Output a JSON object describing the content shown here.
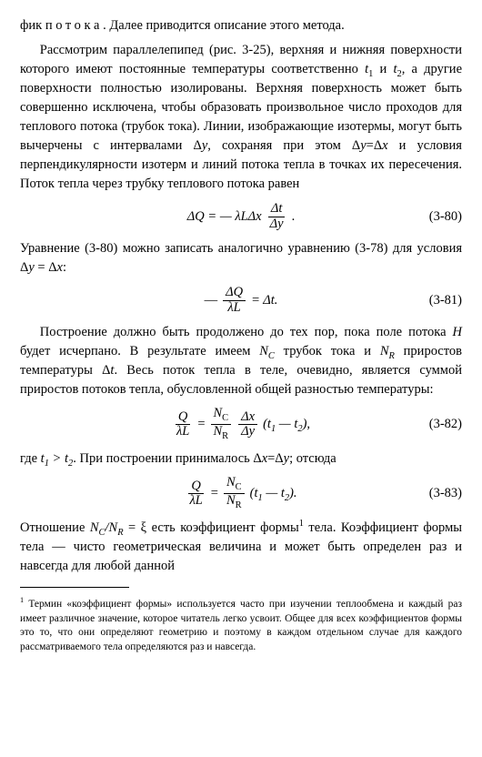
{
  "paragraphs": {
    "p1_a": "фик ",
    "p1_b": "потока",
    "p1_c": ". Далее приводится описание этого метода.",
    "p2_a": "Рассмотрим параллелепипед (рис. 3-25), верхняя и нижняя поверхности которого имеют постоянные температуры соответственно ",
    "p2_b": " и ",
    "p2_c": ", а другие поверхности полностью изолированы. Верхняя поверхность может быть совершенно исключена, чтобы образовать произвольное число проходов для теплового потока (трубок тока). Линии, изображающие изотермы, могут быть вычерчены с интервалами Δ",
    "p2_d": ", сохраняя при этом Δ",
    "p2_e": "=Δ",
    "p2_f": " и условия перпендикулярности изотерм и линий потока тепла в точках их пересечения. Поток тепла через трубку теплового потока равен",
    "p3_a": "Уравнение (3-80) можно записать аналогично уравнению (3-78) для условия Δ",
    "p3_b": " = Δ",
    "p3_c": ":",
    "p4_a": "Построение должно быть продолжено до тех пор, пока поле потока ",
    "p4_b": " будет исчерпано. В результате имеем ",
    "p4_c": " трубок тока и ",
    "p4_d": " приростов температуры Δ",
    "p4_e": ". Весь поток тепла в теле, очевидно, является суммой приростов потоков тепла, обусловленной общей разностью температуры:",
    "p5_a": "где ",
    "p5_b": ". При построении принималось Δ",
    "p5_c": "=Δ",
    "p5_d": "; отсюда",
    "p6_a": "Отношение ",
    "p6_b": " = ξ есть коэффициент формы",
    "p6_c": " тела. Коэффициент формы тела — чисто геометрическая величина и может быть определен раз и навсегда для любой данной"
  },
  "symbols": {
    "t1": "t",
    "t1sub": "1",
    "t2": "t",
    "t2sub": "2",
    "y": "y",
    "x": "x",
    "H": "H",
    "t": "t",
    "NC": "N",
    "NCsub": "C",
    "NR": "N",
    "NRsub": "R",
    "ratio_a": "N",
    "ratio_a_sub": "C",
    "ratio_b": "N",
    "ratio_b_sub": "R",
    "gt": " > "
  },
  "equations": {
    "e80": {
      "lhs": "ΔQ = — λLΔx",
      "frac_num": "Δt",
      "frac_den": "Δy",
      "tail": " .",
      "num": "(3-80)"
    },
    "e81": {
      "pre": "— ",
      "frac_num": "ΔQ",
      "frac_den": "λL",
      "mid": " = Δt.",
      "num": "(3-81)"
    },
    "e82": {
      "frac1_num": "Q",
      "frac1_den": "λL",
      "eq": " = ",
      "frac2_num": "N",
      "frac2_num_sub": "C",
      "frac2_den": "N",
      "frac2_den_sub": "R",
      "frac3_num": "Δx",
      "frac3_den": "Δy",
      "paren_a": " (t",
      "paren_a_sub": "1",
      "paren_mid": " — t",
      "paren_b_sub": "2",
      "paren_end": "),",
      "num": "(3-82)"
    },
    "e83": {
      "frac1_num": "Q",
      "frac1_den": "λL",
      "eq": " = ",
      "frac2_num": "N",
      "frac2_num_sub": "C",
      "frac2_den": "N",
      "frac2_den_sub": "R",
      "paren_a": " (t",
      "paren_a_sub": "1",
      "paren_mid": " — t",
      "paren_b_sub": "2",
      "paren_end": ").",
      "num": "(3-83)"
    }
  },
  "footnote": {
    "mark": "1",
    "text": " Термин «коэффициент формы» используется часто при изучении теплообмена и каждый раз имеет различное значение, которое читатель легко усвоит. Общее для всех коэффициентов формы это то, что они определяют геометрию и поэтому в каждом отдельном случае для каждого рассматриваемого тела определяются раз и навсегда."
  }
}
